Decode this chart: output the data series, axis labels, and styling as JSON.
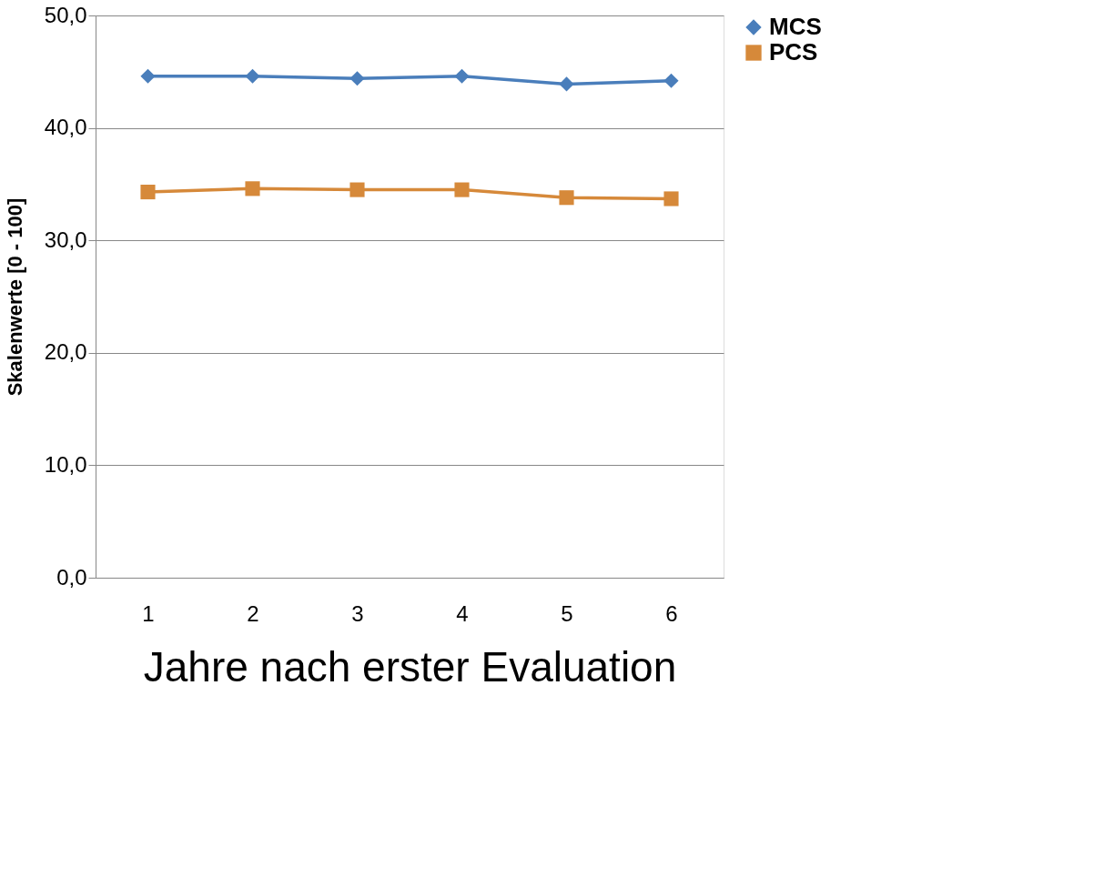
{
  "chart_data": {
    "type": "line",
    "xlabel": "Jahre nach erster Evaluation",
    "ylabel": "Skalenwerte [0 - 100]",
    "categories": [
      "1",
      "2",
      "3",
      "4",
      "5",
      "6"
    ],
    "series": [
      {
        "name": "MCS",
        "color": "#4a7ebb",
        "marker": "diamond",
        "values": [
          44.6,
          44.6,
          44.4,
          44.6,
          43.9,
          44.2
        ]
      },
      {
        "name": "PCS",
        "color": "#d6893a",
        "marker": "square",
        "values": [
          34.3,
          34.6,
          34.5,
          34.5,
          33.8,
          33.7
        ]
      }
    ],
    "ylim": [
      0,
      50
    ],
    "yticks": [
      {
        "value": 0,
        "label": "0,0"
      },
      {
        "value": 10,
        "label": "10,0"
      },
      {
        "value": 20,
        "label": "20,0"
      },
      {
        "value": 30,
        "label": "30,0"
      },
      {
        "value": 40,
        "label": "40,0"
      },
      {
        "value": 50,
        "label": "50,0"
      }
    ],
    "grid": "y",
    "legend": "right"
  }
}
